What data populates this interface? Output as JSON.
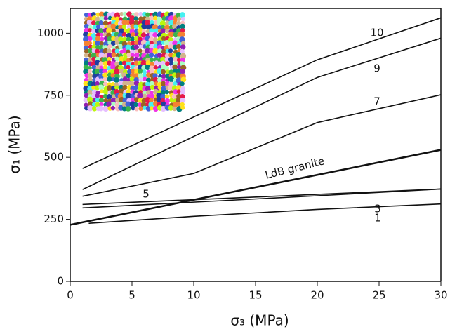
{
  "chart_data": {
    "type": "line",
    "x_label": "σ₃ (MPa)",
    "y_label": "σ₁ (MPa)",
    "xlim": [
      0,
      30
    ],
    "xticks": [
      0,
      5,
      10,
      15,
      20,
      25,
      30
    ],
    "ylim": [
      0,
      1100
    ],
    "yticks": [
      0,
      250,
      500,
      750,
      1000
    ],
    "series": [
      {
        "name": "10",
        "color": "#111111",
        "x": [
          1,
          20,
          30
        ],
        "values": [
          455,
          893,
          1062
        ]
      },
      {
        "name": "9",
        "color": "#111111",
        "x": [
          1,
          20,
          30
        ],
        "values": [
          370,
          822,
          980
        ]
      },
      {
        "name": "7",
        "color": "#111111",
        "x": [
          1,
          10,
          20,
          30
        ],
        "values": [
          343,
          435,
          640,
          752
        ]
      },
      {
        "name": "LdB granite",
        "color": "#111111",
        "x": [
          0,
          30
        ],
        "values": [
          228,
          530
        ]
      },
      {
        "name": "5",
        "color": "#111111",
        "x": [
          1,
          20,
          30
        ],
        "values": [
          296,
          345,
          372
        ]
      },
      {
        "name": "3",
        "color": "#111111",
        "x": [
          1,
          30
        ],
        "values": [
          310,
          372
        ]
      },
      {
        "name": "1",
        "color": "#111111",
        "x": [
          1.5,
          10,
          20,
          30
        ],
        "values": [
          234,
          262,
          290,
          312
        ]
      }
    ]
  }
}
